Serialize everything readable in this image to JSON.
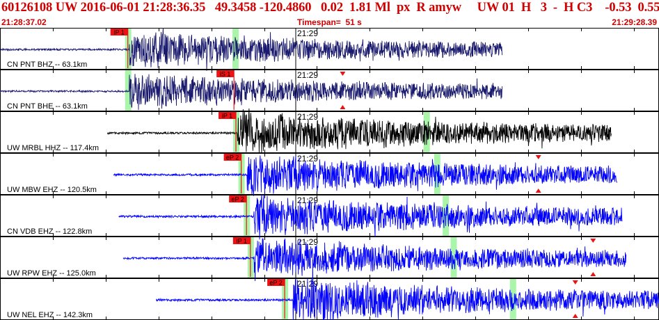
{
  "header": {
    "title": "60126108 UW 2016-06-01 21:28:36.35   49.3458 -120.4860   0.02  1.81 Ml  px  R amyw     UW 01  H   3  -  H C3    -0.53  0.55",
    "start_time": "21:28:37.02",
    "timespan_label": "Timespan=",
    "timespan_value": "51 s",
    "end_time": "21:29:28.39"
  },
  "minute_label": "21:29",
  "colors": {
    "header_red": "#d00000",
    "trace_blue": "#0000ff",
    "trace_navy": "#1a1a6e",
    "trace_black": "#000000",
    "pick_green": "#aaf5aa",
    "pick_red": "#ee1111"
  },
  "channels": [
    {
      "label": "CN PNT BHZ -- 63.1km",
      "color": "#1a1a6e",
      "phase": "iP 1",
      "start_frac": 0.0,
      "end_frac": 0.762,
      "onset_frac": 0.196,
      "pick_frac": 0.194,
      "green_frac": [
        0.194,
        0.357
      ],
      "amplitude": 0.42,
      "markers": []
    },
    {
      "label": "CN PNT BHE -- 63.1km",
      "color": "#1a1a6e",
      "phase": "iS 1",
      "start_frac": 0.0,
      "end_frac": 0.762,
      "onset_frac": 0.196,
      "pick_frac": 0.355,
      "green_frac": [
        0.194
      ],
      "amplitude": 0.42,
      "markers": [
        0.52
      ]
    },
    {
      "label": "UW MRBL HHZ -- 117.4km",
      "color": "#000000",
      "phase": "iP 1",
      "start_frac": 0.163,
      "end_frac": 0.928,
      "onset_frac": 0.36,
      "pick_frac": 0.358,
      "green_frac": [
        0.358,
        0.647
      ],
      "amplitude": 0.48,
      "markers": []
    },
    {
      "label": "UW MBW EHZ -- 120.5km",
      "color": "#0000ff",
      "phase": "eP 2",
      "start_frac": 0.172,
      "end_frac": 0.936,
      "onset_frac": 0.375,
      "pick_frac": 0.366,
      "green_frac": [
        0.366,
        0.663
      ],
      "amplitude": 0.48,
      "markers": [
        0.817
      ]
    },
    {
      "label": "CN VDB EHZ -- 122.8km",
      "color": "#0000ff",
      "phase": "eP 2",
      "start_frac": 0.18,
      "end_frac": 0.944,
      "onset_frac": 0.385,
      "pick_frac": 0.374,
      "green_frac": [
        0.374,
        0.676
      ],
      "amplitude": 0.48,
      "markers": []
    },
    {
      "label": "UW RPW EHZ -- 125.0km",
      "color": "#0000ff",
      "phase": "iP 1",
      "start_frac": 0.187,
      "end_frac": 0.95,
      "onset_frac": 0.385,
      "pick_frac": 0.38,
      "green_frac": [
        0.38,
        0.688
      ],
      "amplitude": 0.46,
      "markers": [
        0.9
      ]
    },
    {
      "label": "UW NEL EHZ -- 142.3km",
      "color": "#0000ff",
      "phase": "eP 2",
      "start_frac": 0.237,
      "end_frac": 1.0,
      "onset_frac": 0.445,
      "pick_frac": 0.432,
      "green_frac": [
        0.432,
        0.778
      ],
      "amplitude": 0.5,
      "markers": [
        0.873
      ]
    }
  ]
}
